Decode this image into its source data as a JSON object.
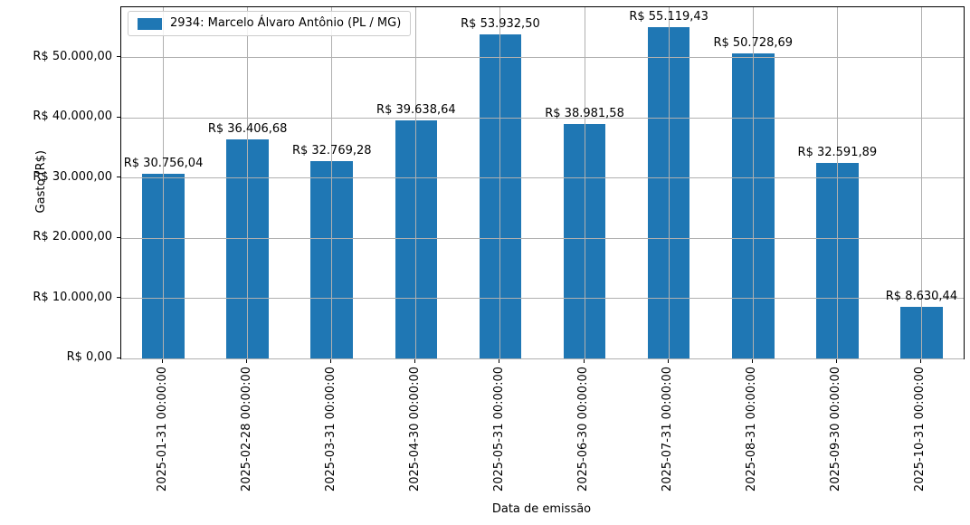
{
  "chart_data": {
    "type": "bar",
    "title": "",
    "xlabel": "Data de emissão",
    "ylabel": "Gasto (R$)",
    "legend_position": "upper left",
    "legend": [
      {
        "label": "2934: Marcelo Álvaro Antônio (PL / MG)",
        "color": "#1f77b4"
      }
    ],
    "categories": [
      "2025-01-31 00:00:00",
      "2025-02-28 00:00:00",
      "2025-03-31 00:00:00",
      "2025-04-30 00:00:00",
      "2025-05-31 00:00:00",
      "2025-06-30 00:00:00",
      "2025-07-31 00:00:00",
      "2025-08-31 00:00:00",
      "2025-09-30 00:00:00",
      "2025-10-31 00:00:00"
    ],
    "values": [
      30756.04,
      36406.68,
      32769.28,
      39638.64,
      53932.5,
      38981.58,
      55119.43,
      50728.69,
      32591.89,
      8630.44
    ],
    "bar_labels": [
      "R$ 30.756,04",
      "R$ 36.406,68",
      "R$ 32.769,28",
      "R$ 39.638,64",
      "R$ 53.932,50",
      "R$ 38.981,58",
      "R$ 55.119,43",
      "R$ 50.728,69",
      "R$ 32.591,89",
      "R$ 8.630,44"
    ],
    "yticks": [
      {
        "value": 0,
        "label": "R$ 0,00"
      },
      {
        "value": 10000,
        "label": "R$ 10.000,00"
      },
      {
        "value": 20000,
        "label": "R$ 20.000,00"
      },
      {
        "value": 30000,
        "label": "R$ 30.000,00"
      },
      {
        "value": 40000,
        "label": "R$ 40.000,00"
      },
      {
        "value": 50000,
        "label": "R$ 50.000,00"
      }
    ],
    "ylim": [
      0,
      58433
    ],
    "grid": true,
    "grid_over_bars": true,
    "bar_width_fraction": 0.5,
    "colors": {
      "bar": "#1f77b4",
      "grid": "#b0b0b0",
      "spine": "#000000",
      "text": "#000000",
      "legend_border": "#cccccc"
    }
  }
}
